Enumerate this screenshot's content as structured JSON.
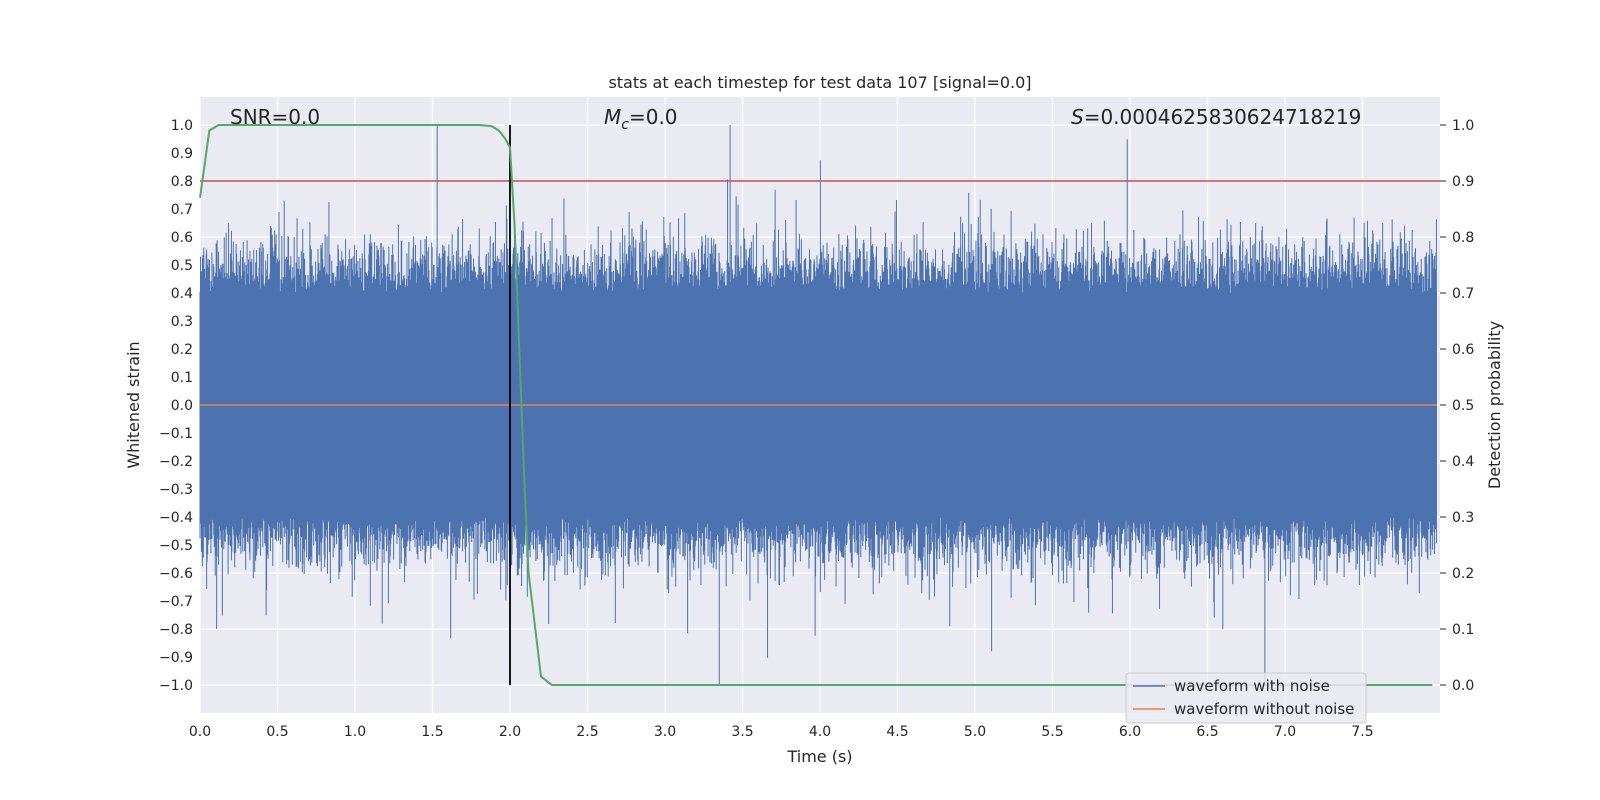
{
  "chart_data": {
    "type": "line",
    "title": "stats at each timestep for test data 107 [signal=0.0]",
    "xlabel": "Time (s)",
    "ylabel": "Whitened strain",
    "y2label": "Detection probability",
    "xlim": [
      0.0,
      8.0
    ],
    "ylim": [
      -1.1,
      1.1
    ],
    "y2lim": [
      -0.05,
      1.05
    ],
    "grid": true,
    "x_ticks": [
      "0.0",
      "0.5",
      "1.0",
      "1.5",
      "2.0",
      "2.5",
      "3.0",
      "3.5",
      "4.0",
      "4.5",
      "5.0",
      "5.5",
      "6.0",
      "6.5",
      "7.0",
      "7.5"
    ],
    "y_ticks": [
      "1.0",
      "0.9",
      "0.8",
      "0.7",
      "0.6",
      "0.5",
      "0.4",
      "0.3",
      "0.2",
      "0.1",
      "0.0",
      "−0.1",
      "−0.2",
      "−0.3",
      "−0.4",
      "−0.5",
      "−0.6",
      "−0.7",
      "−0.8",
      "−0.9",
      "−1.0"
    ],
    "y2_ticks": [
      "1.0",
      "0.9",
      "0.8",
      "0.7",
      "0.6",
      "0.5",
      "0.4",
      "0.3",
      "0.2",
      "0.1",
      "0.0"
    ],
    "annotations": {
      "snr": "SNR=0.0",
      "mc_symbol": "M",
      "mc_sub": "c",
      "mc_value": "=0.0",
      "s_symbol": "S",
      "s_value": "=0.0004625830624718219"
    },
    "series": [
      {
        "name": "waveform with noise",
        "color": "#4c72b0",
        "kind": "noise",
        "amplitude_envelope": 0.4,
        "peak_max": 1.0,
        "peak_min": -1.0
      },
      {
        "name": "waveform without noise",
        "color": "#dd8452",
        "kind": "flat",
        "value": 0.0
      },
      {
        "name": "detection probability",
        "color": "#55a868",
        "axis": "right",
        "x": [
          0.0,
          0.03,
          0.06,
          0.12,
          0.2,
          0.5,
          1.0,
          1.5,
          1.8,
          1.88,
          1.93,
          1.97,
          2.0,
          2.03,
          2.06,
          2.09,
          2.12,
          2.15,
          2.2,
          2.27,
          2.4,
          3.0,
          5.0,
          7.0,
          7.95
        ],
        "values": [
          0.87,
          0.93,
          0.99,
          1.0,
          1.0,
          1.0,
          1.0,
          1.0,
          1.0,
          0.998,
          0.99,
          0.975,
          0.96,
          0.82,
          0.6,
          0.38,
          0.2,
          0.13,
          0.015,
          0.0,
          0.0,
          0.0,
          0.0,
          0.0,
          0.0
        ]
      }
    ],
    "threshold_line": {
      "value": 0.9,
      "axis": "right",
      "color": "#c44e52"
    },
    "event_marker": {
      "x": 2.0,
      "ymin": -1.0,
      "ymax": 1.0,
      "color": "#000000"
    },
    "legend": {
      "placement": "bottom-right",
      "entries": [
        "waveform with noise",
        "waveform without noise"
      ]
    }
  }
}
